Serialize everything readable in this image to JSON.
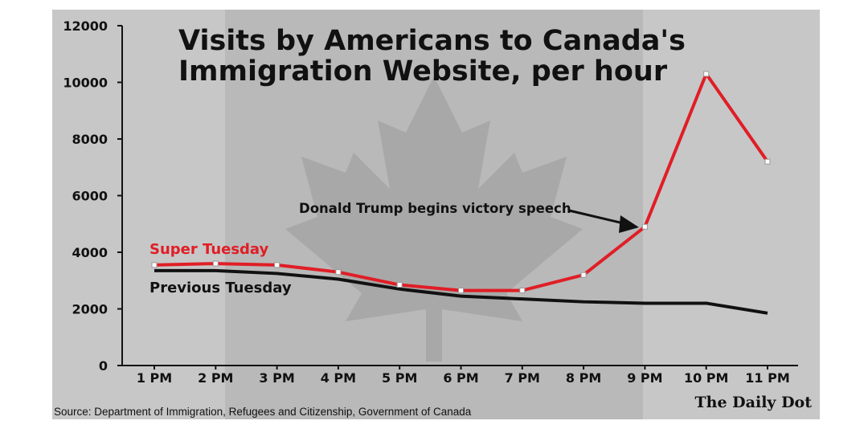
{
  "chart_data": {
    "type": "line",
    "title_line1": "Visits by Americans to Canada's",
    "title_line2": "Immigration Website, per hour",
    "categories": [
      "1 PM",
      "2 PM",
      "3 PM",
      "4 PM",
      "5 PM",
      "6 PM",
      "7 PM",
      "8 PM",
      "9 PM",
      "10 PM",
      "11 PM"
    ],
    "y_ticks": [
      "0",
      "2000",
      "4000",
      "6000",
      "8000",
      "10000",
      "12000"
    ],
    "ylim": [
      0,
      12000
    ],
    "series": [
      {
        "name": "Super Tuesday",
        "color": "#e01e26",
        "values": [
          3550,
          3600,
          3550,
          3300,
          2850,
          2650,
          2650,
          3200,
          4900,
          10300,
          7200
        ]
      },
      {
        "name": "Previous Tuesday",
        "color": "#111111",
        "values": [
          3350,
          3350,
          3250,
          3050,
          2700,
          2450,
          2350,
          2250,
          2200,
          2200,
          1850
        ]
      }
    ],
    "annotation": "Donald Trump begins victory speech",
    "legend_placement": "inline-left",
    "grid": false
  },
  "source": "Source: Department of Immigration, Refugees and Citizenship, Government of Canada",
  "brand": "The Daily Dot",
  "colors": {
    "background_panel": "#b9b9b9",
    "band_light": "#c9c9c9",
    "leaf": "#a4a4a4",
    "axis": "#111111"
  }
}
